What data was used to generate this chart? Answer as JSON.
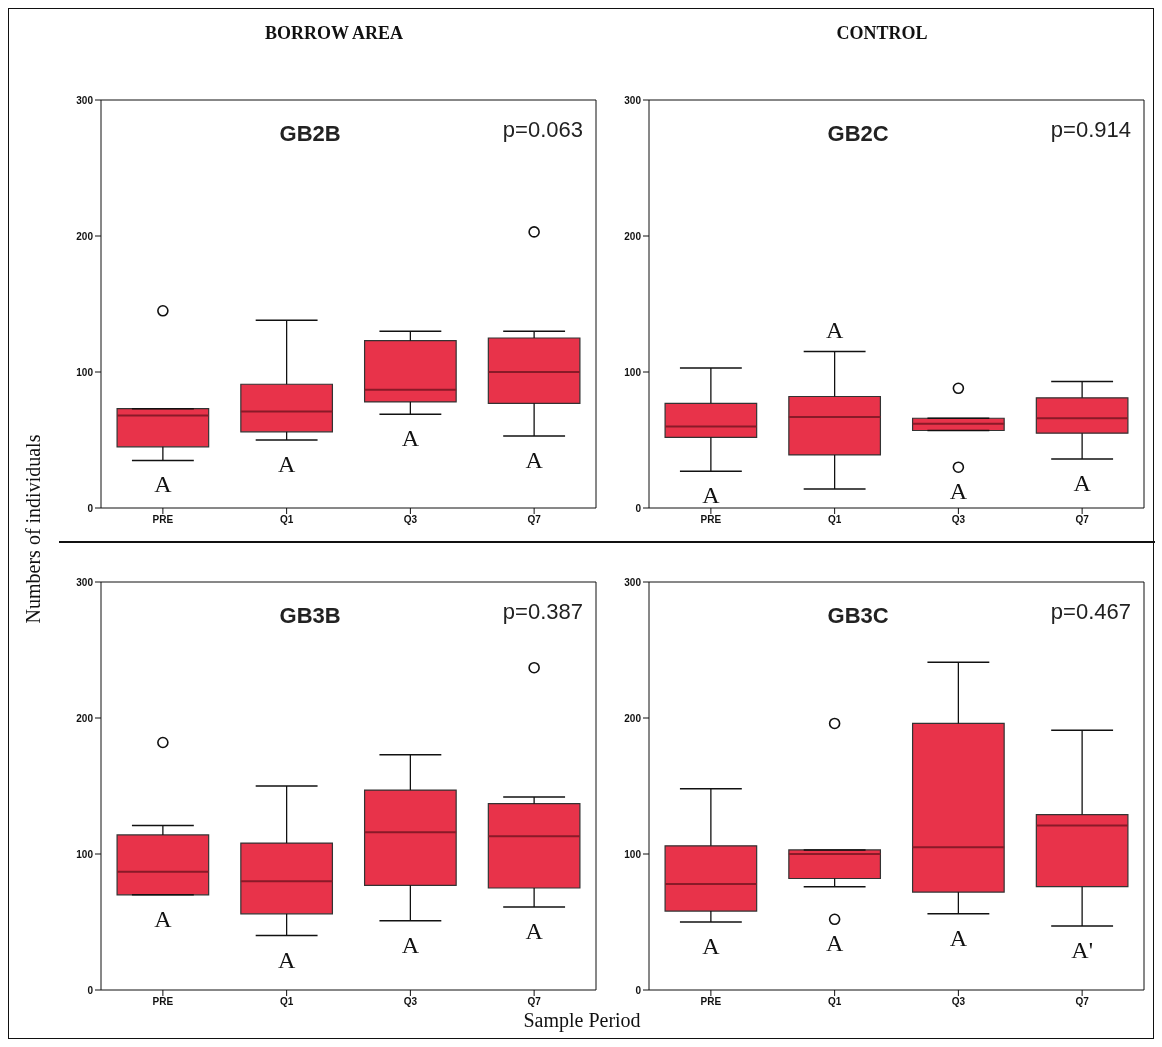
{
  "chart_data": [
    {
      "type": "box",
      "title": "BORROW AREA",
      "subtitle": "GB2B",
      "categories": [
        "PRE",
        "Q1",
        "Q3",
        "Q7"
      ],
      "ylim": [
        0,
        300
      ],
      "yticks": [
        0,
        100,
        200,
        300
      ],
      "grid": false,
      "color": "#e8334a",
      "boxes": [
        {
          "low": 35,
          "q1": 45,
          "median": 68,
          "q3": 73,
          "high": 73,
          "outliers": [
            145
          ]
        },
        {
          "low": 50,
          "q1": 56,
          "median": 71,
          "q3": 91,
          "high": 138
        },
        {
          "low": 69,
          "q1": 78,
          "median": 87,
          "q3": 123,
          "high": 130
        },
        {
          "low": 53,
          "q1": 77,
          "median": 100,
          "q3": 125,
          "high": 130,
          "outliers": [
            203
          ]
        }
      ],
      "annotations": [
        "p=0.063",
        "A",
        "A",
        "A",
        "A"
      ]
    },
    {
      "type": "box",
      "title": "CONTROL",
      "subtitle": "GB2C",
      "categories": [
        "PRE",
        "Q1",
        "Q3",
        "Q7"
      ],
      "ylim": [
        0,
        300
      ],
      "yticks": [
        0,
        100,
        200,
        300
      ],
      "grid": false,
      "color": "#e8334a",
      "boxes": [
        {
          "low": 27,
          "q1": 52,
          "median": 60,
          "q3": 77,
          "high": 103
        },
        {
          "low": 14,
          "q1": 39,
          "median": 67,
          "q3": 82,
          "high": 115
        },
        {
          "low": 57,
          "q1": 57,
          "median": 62,
          "q3": 66,
          "high": 66,
          "outliers": [
            88,
            30
          ]
        },
        {
          "low": 36,
          "q1": 55,
          "median": 66,
          "q3": 81,
          "high": 93
        }
      ],
      "annotations": [
        "p=0.914",
        "A",
        "A",
        "A",
        "A"
      ]
    },
    {
      "type": "box",
      "subtitle": "GB3B",
      "ylabel": "Numbers of individuals",
      "xlabel": "Sample Period",
      "categories": [
        "PRE",
        "Q1",
        "Q3",
        "Q7"
      ],
      "ylim": [
        0,
        300
      ],
      "yticks": [
        0,
        100,
        200,
        300
      ],
      "grid": false,
      "color": "#e8334a",
      "boxes": [
        {
          "low": 70,
          "q1": 70,
          "median": 87,
          "q3": 114,
          "high": 121,
          "outliers": [
            182
          ]
        },
        {
          "low": 40,
          "q1": 56,
          "median": 80,
          "q3": 108,
          "high": 150
        },
        {
          "low": 51,
          "q1": 77,
          "median": 116,
          "q3": 147,
          "high": 173
        },
        {
          "low": 61,
          "q1": 75,
          "median": 113,
          "q3": 137,
          "high": 142,
          "outliers": [
            237
          ]
        }
      ],
      "annotations": [
        "p=0.387",
        "A",
        "A",
        "A",
        "A"
      ]
    },
    {
      "type": "box",
      "subtitle": "GB3C",
      "categories": [
        "PRE",
        "Q1",
        "Q3",
        "Q7"
      ],
      "ylim": [
        0,
        300
      ],
      "yticks": [
        0,
        100,
        200,
        300
      ],
      "grid": false,
      "color": "#e8334a",
      "boxes": [
        {
          "low": 50,
          "q1": 58,
          "median": 78,
          "q3": 106,
          "high": 148
        },
        {
          "low": 76,
          "q1": 82,
          "median": 100,
          "q3": 103,
          "high": 103,
          "outliers": [
            196,
            52
          ]
        },
        {
          "low": 56,
          "q1": 72,
          "median": 105,
          "q3": 196,
          "high": 241
        },
        {
          "low": 47,
          "q1": 76,
          "median": 121,
          "q3": 129,
          "high": 191
        }
      ],
      "annotations": [
        "p=0.467",
        "A",
        "A",
        "A",
        "A'"
      ]
    }
  ]
}
